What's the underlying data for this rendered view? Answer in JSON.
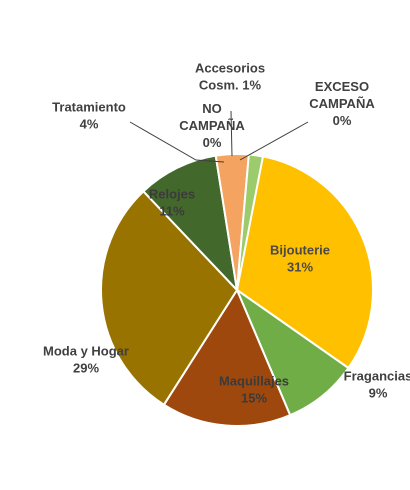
{
  "chart_data": {
    "type": "pie",
    "slices": [
      {
        "label": "Bijouterie",
        "value": 31,
        "pct": "31%",
        "color": "#FFC000"
      },
      {
        "label": "Fragancias",
        "value": 9,
        "pct": "9%",
        "color": "#70AD47"
      },
      {
        "label": "Maquillajes",
        "value": 15,
        "pct": "15%",
        "color": "#9E480E"
      },
      {
        "label": "Moda y Hogar",
        "value": 29,
        "pct": "29%",
        "color": "#997300"
      },
      {
        "label": "Relojes",
        "value": 11,
        "pct": "11%",
        "color": "#43682B"
      },
      {
        "label": "Tratamiento",
        "value": 4,
        "pct": "4%",
        "color": "#F4A460"
      },
      {
        "label": "Accesorios Cosm.",
        "value": 1,
        "pct": "1%",
        "color": "#9BCB6A"
      },
      {
        "label": "NO CAMPAÑA",
        "value": 0,
        "pct": "0%",
        "color": "#C9C9C9"
      },
      {
        "label": "EXCESO CAMPAÑA",
        "value": 0,
        "pct": "0%",
        "color": "#A5A5A5"
      }
    ]
  }
}
